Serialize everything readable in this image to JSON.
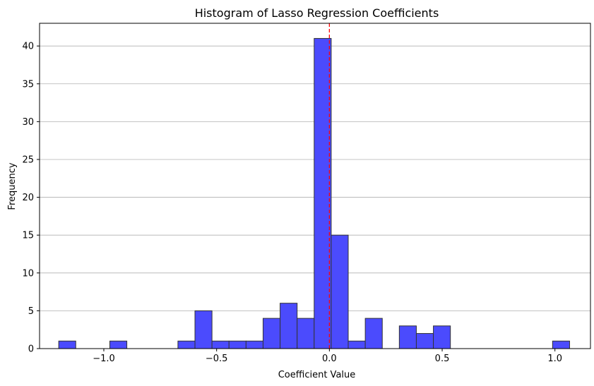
{
  "chart_data": {
    "type": "bar",
    "title": "Histogram of Lasso Regression Coefficients",
    "xlabel": "Coefficient Value",
    "ylabel": "Frequency",
    "xlim": [
      -1.285,
      1.1575
    ],
    "ylim": [
      0,
      43
    ],
    "xticks": [
      -1.0,
      -0.5,
      0.0,
      0.5,
      1.0
    ],
    "xtick_labels": [
      "−1.0",
      "−0.5",
      "0.0",
      "0.5",
      "1.0"
    ],
    "yticks": [
      0,
      5,
      10,
      15,
      20,
      25,
      30,
      35,
      40
    ],
    "ytick_labels": [
      "0",
      "5",
      "10",
      "15",
      "20",
      "25",
      "30",
      "35",
      "40"
    ],
    "grid": "y-major",
    "bin_start": -1.2,
    "bin_width": 0.0755,
    "counts": [
      1,
      0,
      0,
      1,
      0,
      0,
      0,
      1,
      5,
      1,
      1,
      1,
      4,
      6,
      4,
      41,
      15,
      1,
      4,
      0,
      3,
      2,
      3,
      0,
      0,
      0,
      0,
      0,
      0,
      1
    ],
    "bar_color": "#4b4bfd",
    "edge_color": "#333333",
    "vline": {
      "x": 0.0,
      "color": "#ff0000",
      "style": "dashed"
    }
  }
}
